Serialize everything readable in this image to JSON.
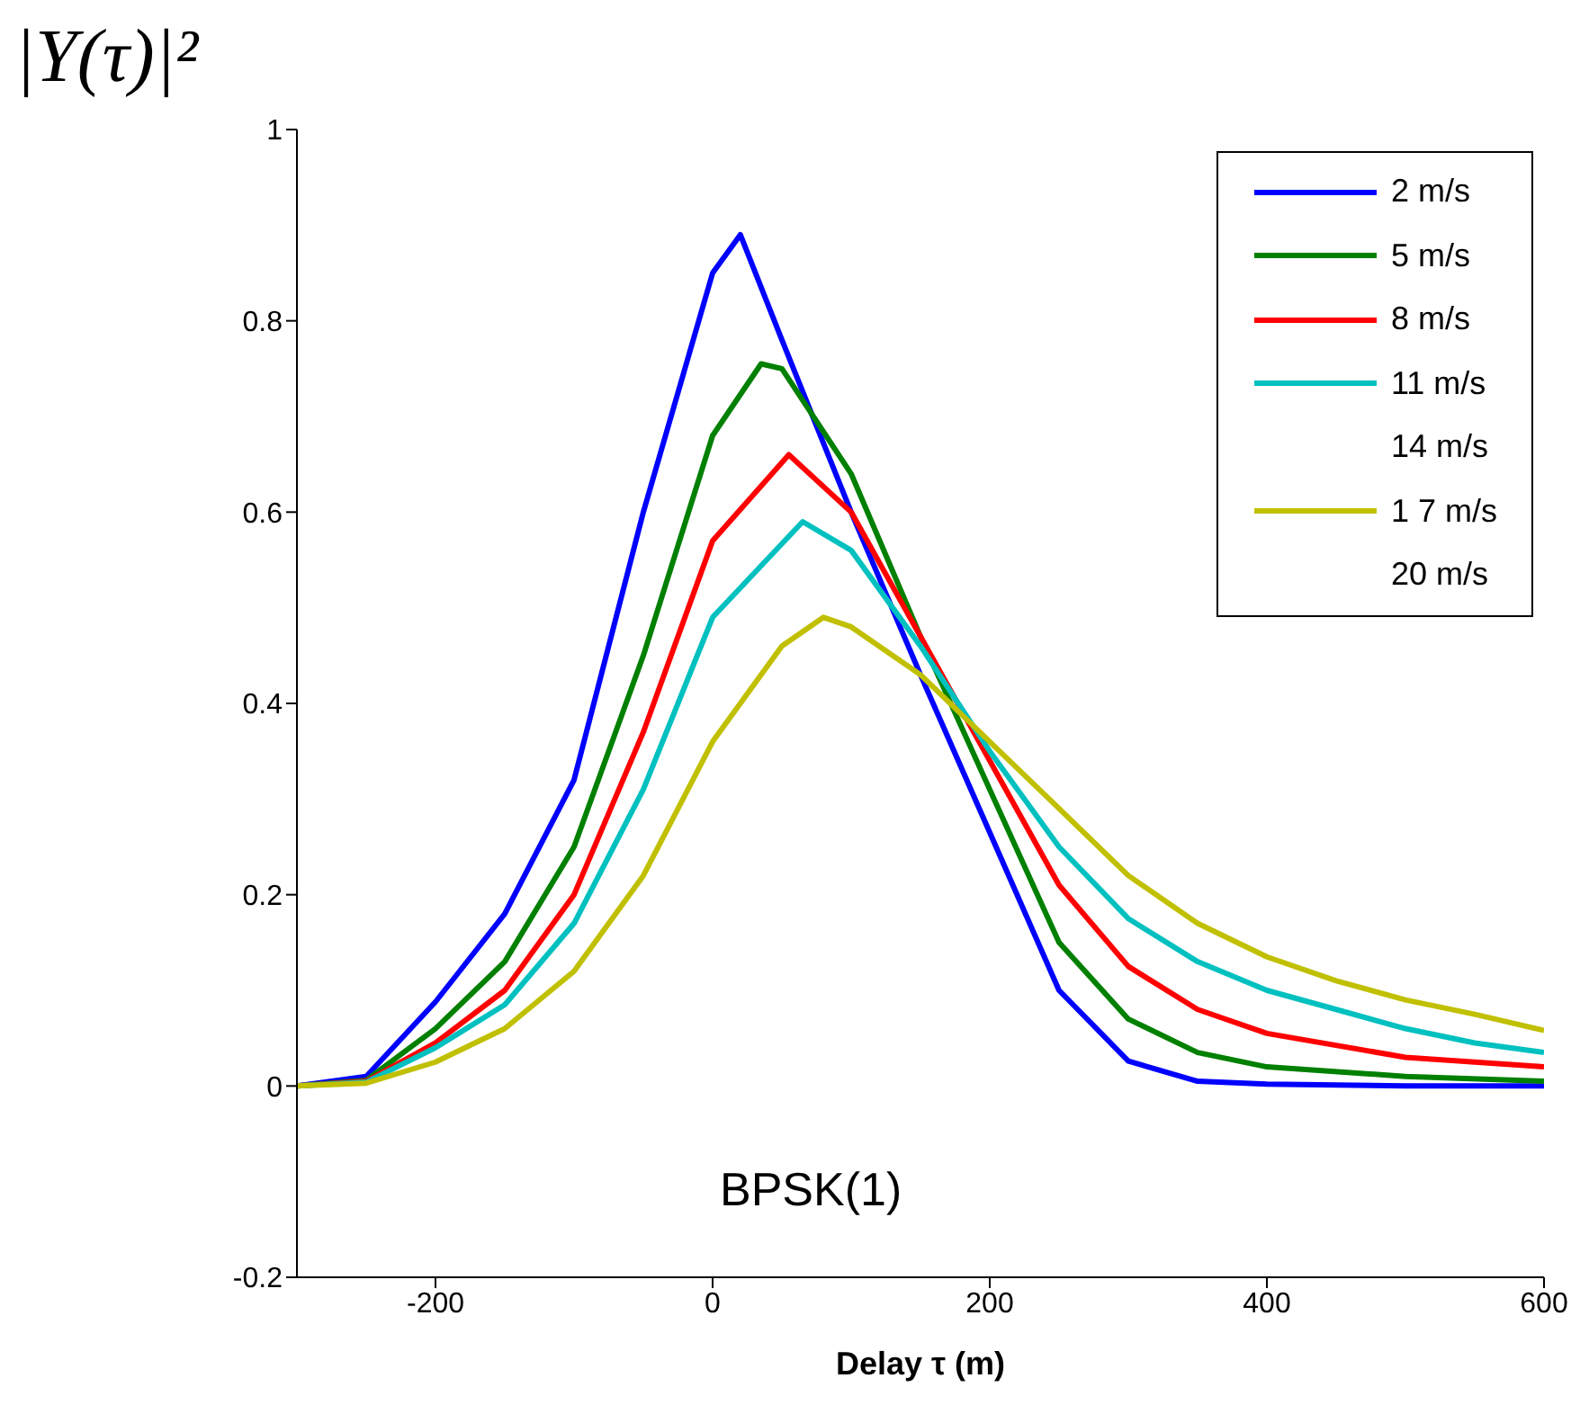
{
  "chart_data": {
    "type": "line",
    "ylabel": "|Y(τ)|²",
    "xlabel": "Delay τ (m)",
    "annotations": [
      "BPSK(1)"
    ],
    "xlim": [
      -300,
      600
    ],
    "xticks": [
      -200,
      0,
      200,
      400,
      600
    ],
    "ylim": [
      -0.2,
      1
    ],
    "yticks": [
      -0.2,
      0,
      0.2,
      0.4,
      0.6,
      0.8,
      1
    ],
    "grid": false,
    "legend": "top right",
    "marker": "none",
    "line_style": "solid",
    "series": [
      {
        "name": "2 m/s",
        "color": "#0000ff",
        "x": [
          -300,
          -250,
          -200,
          -150,
          -100,
          -50,
          0,
          20,
          50,
          100,
          150,
          200,
          250,
          300,
          350,
          400,
          500,
          600
        ],
        "values": [
          0,
          0.01,
          0.088,
          0.18,
          0.32,
          0.6,
          0.85,
          0.89,
          0.78,
          0.6,
          0.43,
          0.265,
          0.1,
          0.026,
          0.005,
          0.002,
          0,
          0
        ]
      },
      {
        "name": "5 m/s",
        "color": "#008000",
        "x": [
          -300,
          -250,
          -200,
          -150,
          -100,
          -50,
          0,
          35,
          50,
          100,
          150,
          200,
          250,
          300,
          350,
          400,
          500,
          600
        ],
        "values": [
          0,
          0.006,
          0.06,
          0.13,
          0.25,
          0.45,
          0.68,
          0.755,
          0.75,
          0.64,
          0.47,
          0.31,
          0.15,
          0.07,
          0.035,
          0.02,
          0.01,
          0.005
        ]
      },
      {
        "name": "8 m/s",
        "color": "#ff0000",
        "x": [
          -300,
          -250,
          -200,
          -150,
          -100,
          -50,
          0,
          55,
          100,
          150,
          200,
          250,
          300,
          350,
          400,
          500,
          600
        ],
        "values": [
          0,
          0.005,
          0.045,
          0.1,
          0.2,
          0.37,
          0.57,
          0.66,
          0.6,
          0.47,
          0.34,
          0.21,
          0.125,
          0.08,
          0.055,
          0.03,
          0.02
        ]
      },
      {
        "name": "11 m/s",
        "color": "#00c0c0",
        "x": [
          -300,
          -250,
          -200,
          -150,
          -100,
          -50,
          0,
          65,
          100,
          150,
          200,
          250,
          300,
          350,
          400,
          450,
          500,
          550,
          600
        ],
        "values": [
          0,
          0.004,
          0.04,
          0.085,
          0.17,
          0.31,
          0.49,
          0.59,
          0.56,
          0.46,
          0.35,
          0.25,
          0.175,
          0.13,
          0.1,
          0.08,
          0.06,
          0.045,
          0.035
        ]
      },
      {
        "name": "14 m/s"
      },
      {
        "name": "1 7 m/s",
        "color": "#c0c000",
        "x": [
          -300,
          -250,
          -200,
          -150,
          -100,
          -50,
          0,
          50,
          80,
          100,
          150,
          200,
          250,
          300,
          350,
          400,
          450,
          500,
          550,
          600
        ],
        "values": [
          0,
          0.003,
          0.025,
          0.06,
          0.12,
          0.22,
          0.36,
          0.46,
          0.49,
          0.48,
          0.43,
          0.36,
          0.29,
          0.22,
          0.17,
          0.135,
          0.11,
          0.09,
          0.075,
          0.058
        ]
      },
      {
        "name": "20 m/s"
      }
    ]
  }
}
